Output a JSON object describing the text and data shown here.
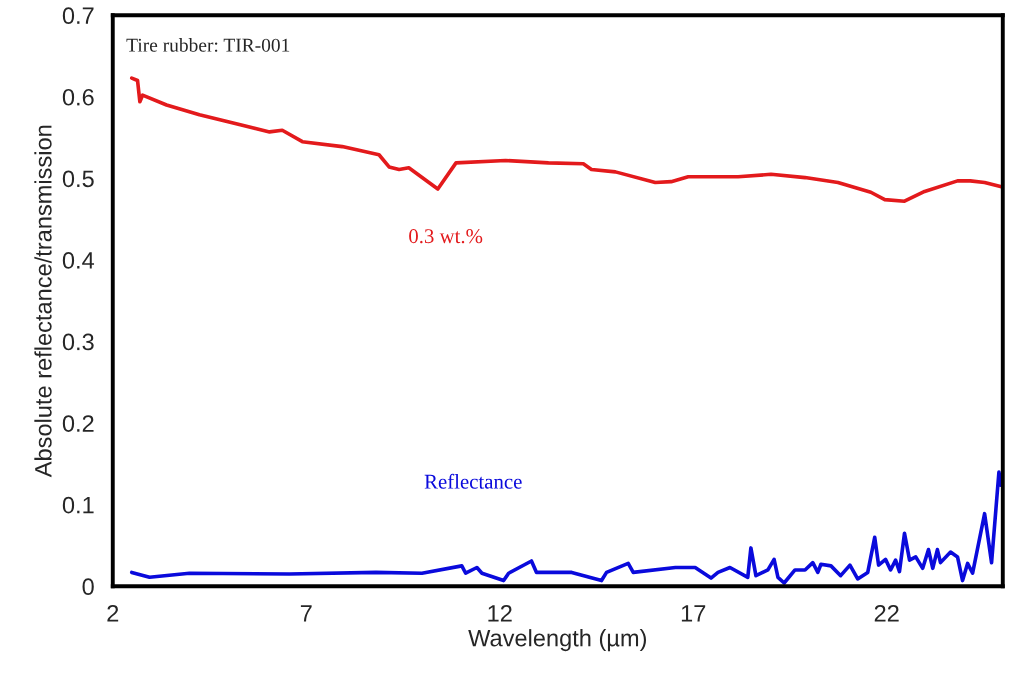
{
  "chart_data": {
    "type": "line",
    "xlabel": "Wavelength (µm)",
    "ylabel": "Absolute reflectance/transmission",
    "annotations": [
      "Tire rubber: TIR-001"
    ],
    "xlim": [
      2,
      25
    ],
    "xticks": [
      2,
      7,
      12,
      17,
      22
    ],
    "ylim": [
      0,
      0.7
    ],
    "yticks": [
      0,
      0.1,
      0.2,
      0.3,
      0.4,
      0.5,
      0.6,
      0.7
    ],
    "grid": false,
    "legend": false,
    "marker": "none",
    "line_style": "solid",
    "series": [
      {
        "name": "0.3 wt.%",
        "color": "#e31a1c",
        "x": [
          2.49,
          2.64,
          2.7,
          2.77,
          3.39,
          4.24,
          5.27,
          6.05,
          6.38,
          6.9,
          7.93,
          8.88,
          9.14,
          9.4,
          9.65,
          10.17,
          10.4,
          10.87,
          12.15,
          13.26,
          14.16,
          14.37,
          14.99,
          16.02,
          16.43,
          16.87,
          18.16,
          19.01,
          19.89,
          20.74,
          21.59,
          21.95,
          22.46,
          22.98,
          23.83,
          24.16,
          24.53,
          24.94
        ],
        "values": [
          0.623,
          0.62,
          0.594,
          0.602,
          0.59,
          0.578,
          0.566,
          0.557,
          0.559,
          0.545,
          0.539,
          0.529,
          0.514,
          0.511,
          0.513,
          0.495,
          0.487,
          0.519,
          0.522,
          0.519,
          0.518,
          0.511,
          0.508,
          0.495,
          0.496,
          0.502,
          0.502,
          0.505,
          0.501,
          0.495,
          0.483,
          0.474,
          0.472,
          0.484,
          0.497,
          0.497,
          0.495,
          0.49
        ]
      },
      {
        "name": "Reflectance",
        "color": "#0a0adc",
        "x": [
          2.49,
          2.95,
          3.98,
          6.56,
          8.8,
          9.99,
          11.02,
          11.12,
          11.41,
          11.54,
          12.1,
          12.23,
          12.82,
          12.95,
          13.86,
          14.63,
          14.76,
          15.32,
          15.45,
          16.54,
          17.05,
          17.46,
          17.64,
          17.95,
          18.41,
          18.49,
          18.62,
          18.93,
          19.09,
          19.19,
          19.35,
          19.63,
          19.89,
          20.09,
          20.22,
          20.3,
          20.56,
          20.81,
          21.05,
          21.25,
          21.51,
          21.69,
          21.79,
          21.97,
          22.1,
          22.23,
          22.33,
          22.46,
          22.59,
          22.75,
          22.93,
          23.08,
          23.19,
          23.31,
          23.39,
          23.65,
          23.83,
          23.96,
          24.09,
          24.22,
          24.53,
          24.71,
          24.9,
          24.95
        ],
        "values": [
          0.017,
          0.011,
          0.016,
          0.015,
          0.017,
          0.016,
          0.025,
          0.016,
          0.023,
          0.016,
          0.007,
          0.016,
          0.031,
          0.017,
          0.017,
          0.007,
          0.017,
          0.028,
          0.017,
          0.023,
          0.023,
          0.01,
          0.017,
          0.023,
          0.011,
          0.047,
          0.013,
          0.02,
          0.033,
          0.011,
          0.004,
          0.02,
          0.02,
          0.029,
          0.017,
          0.027,
          0.025,
          0.013,
          0.026,
          0.009,
          0.017,
          0.06,
          0.026,
          0.033,
          0.02,
          0.032,
          0.018,
          0.065,
          0.032,
          0.036,
          0.022,
          0.045,
          0.022,
          0.045,
          0.029,
          0.042,
          0.036,
          0.007,
          0.028,
          0.016,
          0.089,
          0.029,
          0.14,
          0.124
        ]
      }
    ]
  }
}
